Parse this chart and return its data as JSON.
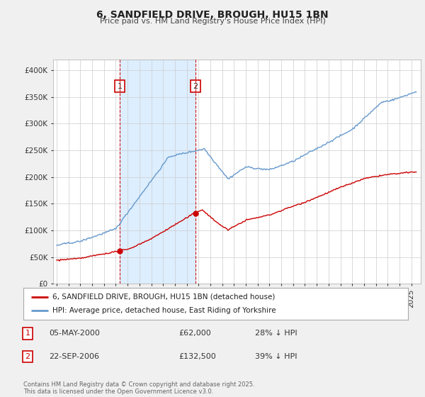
{
  "title": "6, SANDFIELD DRIVE, BROUGH, HU15 1BN",
  "subtitle": "Price paid vs. HM Land Registry's House Price Index (HPI)",
  "red_label": "6, SANDFIELD DRIVE, BROUGH, HU15 1BN (detached house)",
  "blue_label": "HPI: Average price, detached house, East Riding of Yorkshire",
  "annotation1_date": "05-MAY-2000",
  "annotation1_price": "£62,000",
  "annotation1_hpi": "28% ↓ HPI",
  "annotation2_date": "22-SEP-2006",
  "annotation2_price": "£132,500",
  "annotation2_hpi": "39% ↓ HPI",
  "footnote": "Contains HM Land Registry data © Crown copyright and database right 2025.\nThis data is licensed under the Open Government Licence v3.0.",
  "red_color": "#cc0000",
  "blue_color": "#6699cc",
  "shade_color": "#ddeeff",
  "vline_color": "#cc0000",
  "background_color": "#f0f0f0",
  "plot_bg_color": "#ffffff",
  "grid_color": "#cccccc",
  "ylim": [
    0,
    420000
  ],
  "yticks": [
    0,
    50000,
    100000,
    150000,
    200000,
    250000,
    300000,
    350000,
    400000
  ],
  "xlim_start": 1994.7,
  "xlim_end": 2025.8,
  "purchase1_x": 2000.35,
  "purchase1_y_red": 62000,
  "purchase2_x": 2006.73,
  "purchase2_y_red": 132500
}
